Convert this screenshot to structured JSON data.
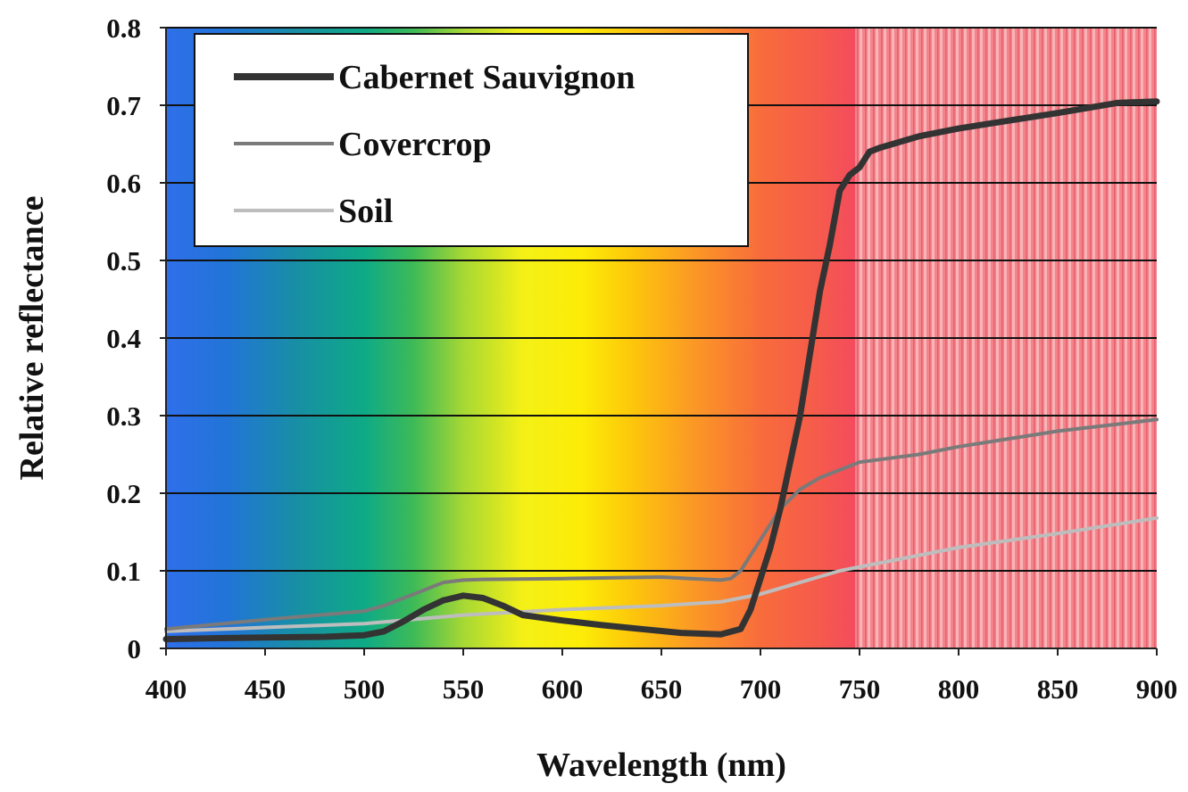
{
  "chart_data": {
    "type": "line",
    "title": "",
    "xlabel": "Wavelength (nm)",
    "ylabel": "Relative reflectance",
    "xlim": [
      400,
      900
    ],
    "ylim": [
      0,
      0.8
    ],
    "x_ticks": [
      "400",
      "450",
      "500",
      "550",
      "600",
      "650",
      "700",
      "750",
      "800",
      "850",
      "900"
    ],
    "y_ticks": [
      "0",
      "0.1",
      "0.2",
      "0.3",
      "0.4",
      "0.5",
      "0.6",
      "0.7",
      "0.8"
    ],
    "grid": "horizontal",
    "legend_position": "top-left",
    "background": "visible-spectrum gradient with striped near-infrared region from 750 nm",
    "series": [
      {
        "name": "Cabernet Sauvignon",
        "color": "#333333",
        "x": [
          400,
          420,
          450,
          480,
          500,
          510,
          520,
          530,
          540,
          550,
          560,
          570,
          580,
          600,
          620,
          640,
          660,
          680,
          690,
          695,
          700,
          705,
          710,
          715,
          720,
          725,
          730,
          735,
          740,
          745,
          750,
          755,
          760,
          780,
          800,
          820,
          850,
          880,
          900
        ],
        "values": [
          0.012,
          0.013,
          0.014,
          0.015,
          0.017,
          0.022,
          0.035,
          0.05,
          0.062,
          0.068,
          0.065,
          0.055,
          0.043,
          0.036,
          0.03,
          0.025,
          0.02,
          0.018,
          0.025,
          0.05,
          0.09,
          0.13,
          0.18,
          0.24,
          0.3,
          0.38,
          0.46,
          0.52,
          0.59,
          0.61,
          0.62,
          0.64,
          0.645,
          0.66,
          0.67,
          0.678,
          0.69,
          0.703,
          0.705
        ]
      },
      {
        "name": "Covercrop",
        "color": "#7a7a7a",
        "x": [
          400,
          450,
          500,
          510,
          520,
          530,
          540,
          550,
          560,
          600,
          650,
          680,
          685,
          690,
          700,
          710,
          720,
          730,
          740,
          750,
          780,
          800,
          850,
          900
        ],
        "values": [
          0.025,
          0.037,
          0.048,
          0.055,
          0.065,
          0.075,
          0.085,
          0.088,
          0.089,
          0.09,
          0.092,
          0.088,
          0.09,
          0.1,
          0.14,
          0.18,
          0.205,
          0.22,
          0.23,
          0.24,
          0.25,
          0.26,
          0.28,
          0.295
        ]
      },
      {
        "name": "Soil",
        "color": "#bdbdbd",
        "x": [
          400,
          450,
          500,
          550,
          600,
          650,
          680,
          700,
          720,
          740,
          760,
          800,
          850,
          900
        ],
        "values": [
          0.022,
          0.027,
          0.032,
          0.043,
          0.05,
          0.055,
          0.06,
          0.07,
          0.085,
          0.1,
          0.11,
          0.13,
          0.148,
          0.168
        ]
      }
    ]
  }
}
